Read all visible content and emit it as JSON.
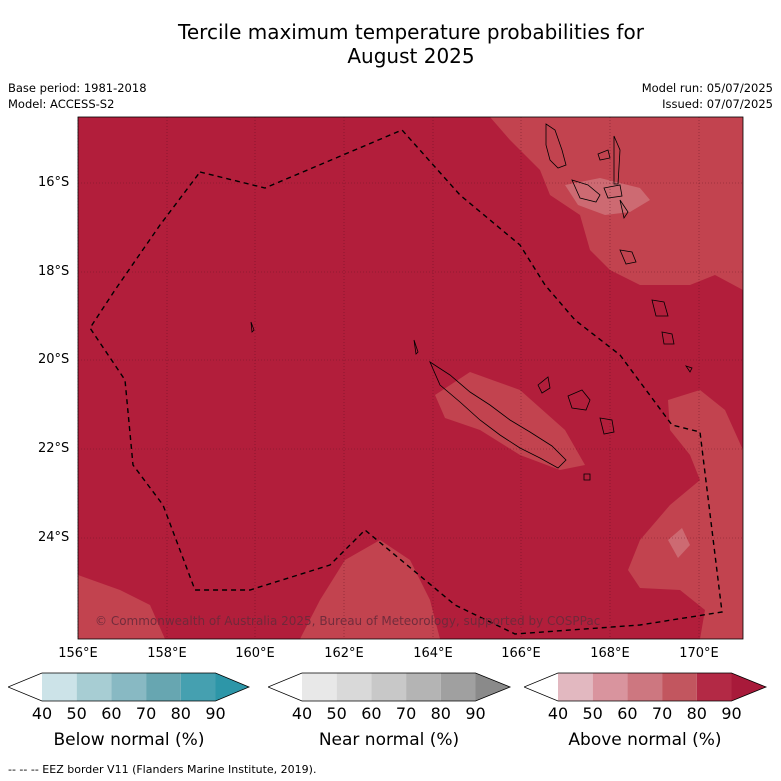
{
  "title_line1": "Tercile maximum temperature probabilities for",
  "title_line2": "August 2025",
  "meta_left": [
    "Base period: 1981-2018",
    "Model: ACCESS-S2"
  ],
  "meta_right": [
    "Model run: 05/07/2025",
    "Issued: 07/07/2025"
  ],
  "lat_labels": [
    "16°S",
    "18°S",
    "20°S",
    "22°S",
    "24°S"
  ],
  "lon_labels": [
    "156°E",
    "158°E",
    "160°E",
    "162°E",
    "164°E",
    "166°E",
    "168°E",
    "170°E"
  ],
  "credit": "© Commonwealth of Australia 2025, Bureau of Meteorology, supported by COSPPac",
  "colorbars": [
    {
      "label": "Below normal (%)",
      "ticks": [
        "40",
        "50",
        "60",
        "70",
        "80",
        "90"
      ],
      "colors": [
        "#ffffff",
        "#cce3e8",
        "#a7cdd3",
        "#88b9c3",
        "#67a6b1",
        "#45a0b0",
        "#2d96a8"
      ]
    },
    {
      "label": "Near normal (%)",
      "ticks": [
        "40",
        "50",
        "60",
        "70",
        "80",
        "90"
      ],
      "colors": [
        "#ffffff",
        "#e8e8e8",
        "#d9d9d9",
        "#c8c8c8",
        "#b4b4b4",
        "#a0a0a0",
        "#8a8a8a"
      ]
    },
    {
      "label": "Above normal (%)",
      "ticks": [
        "40",
        "50",
        "60",
        "70",
        "80",
        "90"
      ],
      "colors": [
        "#ffffff",
        "#e2b8c0",
        "#d9949e",
        "#cd7780",
        "#c2565f",
        "#b32945",
        "#a81a3a"
      ]
    }
  ],
  "map_colors": {
    "dominant": "#b21e3b",
    "lighter": "#c2434f",
    "lightest": "#cd6a72"
  },
  "footer": "--  --  -- EEZ border V11 (Flanders Marine Institute, 2019)."
}
